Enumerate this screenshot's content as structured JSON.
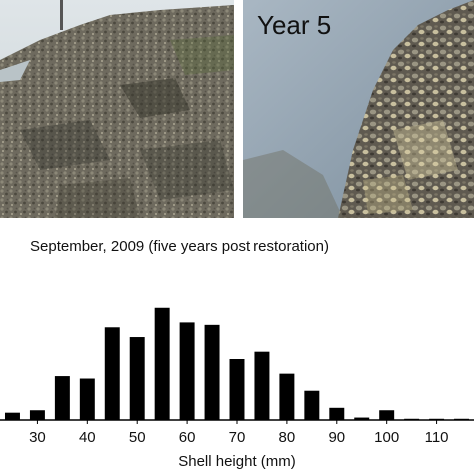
{
  "photos": {
    "left": {
      "caption": ""
    },
    "right": {
      "caption": "Year 5"
    }
  },
  "chart_data": {
    "type": "bar",
    "title": "September, 2009 (five years post restoration)",
    "xlabel": "Shell height (mm)",
    "ylabel": "",
    "x": [
      25,
      30,
      35,
      40,
      45,
      50,
      55,
      60,
      65,
      70,
      75,
      80,
      85,
      90,
      95,
      100,
      105,
      110,
      115
    ],
    "values": [
      3,
      4,
      18,
      17,
      38,
      34,
      46,
      40,
      39,
      25,
      28,
      19,
      12,
      5,
      1,
      4,
      0.5,
      0.5,
      0.5
    ],
    "xlim": [
      22.5,
      117.5
    ],
    "ylim": [
      0,
      50
    ],
    "xticks": [
      30,
      40,
      50,
      60,
      70,
      80,
      90,
      100,
      110
    ],
    "grid": false,
    "colors": {
      "bars": "#000000",
      "axis": "#000000"
    }
  }
}
